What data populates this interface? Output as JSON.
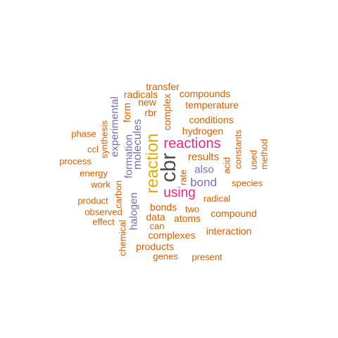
{
  "palette": {
    "orange": "#d95f02",
    "purple": "#7570b3",
    "magenta": "#e7298a",
    "gold": "#e6ab02",
    "gray": "#4d4d4d"
  },
  "words": [
    {
      "text": "cbr",
      "color": "gray"
    },
    {
      "text": "reaction",
      "color": "gold"
    },
    {
      "text": "reactions",
      "color": "magenta"
    },
    {
      "text": "using",
      "color": "magenta"
    },
    {
      "text": "bond",
      "color": "purple"
    },
    {
      "text": "also",
      "color": "purple"
    },
    {
      "text": "molecules",
      "color": "purple"
    },
    {
      "text": "formation",
      "color": "purple"
    },
    {
      "text": "experimental",
      "color": "purple"
    },
    {
      "text": "halogen",
      "color": "purple"
    },
    {
      "text": "transfer",
      "color": "orange"
    },
    {
      "text": "radicals",
      "color": "orange"
    },
    {
      "text": "compounds",
      "color": "orange"
    },
    {
      "text": "new",
      "color": "orange"
    },
    {
      "text": "temperature",
      "color": "orange"
    },
    {
      "text": "rbr",
      "color": "orange"
    },
    {
      "text": "complex",
      "color": "orange"
    },
    {
      "text": "form",
      "color": "orange"
    },
    {
      "text": "conditions",
      "color": "orange"
    },
    {
      "text": "hydrogen",
      "color": "orange"
    },
    {
      "text": "phase",
      "color": "orange"
    },
    {
      "text": "synthesis",
      "color": "orange"
    },
    {
      "text": "ccl",
      "color": "orange"
    },
    {
      "text": "constants",
      "color": "orange"
    },
    {
      "text": "method",
      "color": "orange"
    },
    {
      "text": "used",
      "color": "orange"
    },
    {
      "text": "results",
      "color": "orange"
    },
    {
      "text": "acid",
      "color": "orange"
    },
    {
      "text": "process",
      "color": "orange"
    },
    {
      "text": "rate",
      "color": "orange"
    },
    {
      "text": "energy",
      "color": "orange"
    },
    {
      "text": "species",
      "color": "orange"
    },
    {
      "text": "work",
      "color": "orange"
    },
    {
      "text": "radical",
      "color": "orange"
    },
    {
      "text": "carbon",
      "color": "orange"
    },
    {
      "text": "product",
      "color": "orange"
    },
    {
      "text": "bonds",
      "color": "orange"
    },
    {
      "text": "two",
      "color": "orange"
    },
    {
      "text": "observed",
      "color": "orange"
    },
    {
      "text": "compound",
      "color": "orange"
    },
    {
      "text": "data",
      "color": "orange"
    },
    {
      "text": "atoms",
      "color": "orange"
    },
    {
      "text": "effect",
      "color": "orange"
    },
    {
      "text": "can",
      "color": "orange"
    },
    {
      "text": "interaction",
      "color": "orange"
    },
    {
      "text": "complexes",
      "color": "orange"
    },
    {
      "text": "chemical",
      "color": "orange"
    },
    {
      "text": "products",
      "color": "orange"
    },
    {
      "text": "genes",
      "color": "orange"
    },
    {
      "text": "present",
      "color": "orange"
    }
  ]
}
